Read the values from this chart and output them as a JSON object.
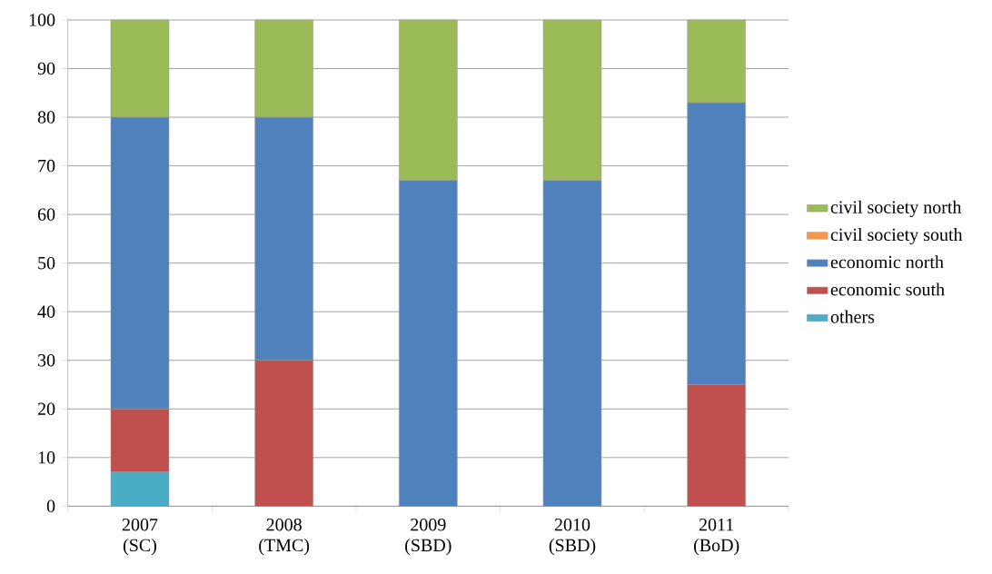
{
  "chart_data": {
    "type": "bar",
    "stacked": true,
    "categories": [
      "2007 (SC)",
      "2008 (TMC)",
      "2009 (SBD)",
      "2010 (SBD)",
      "2011 (BoD)"
    ],
    "series": [
      {
        "name": "others",
        "color": "#4bacc6",
        "values": [
          7,
          0,
          0,
          0,
          0
        ]
      },
      {
        "name": "economic south",
        "color": "#c0504d",
        "values": [
          13,
          30,
          0,
          0,
          25
        ]
      },
      {
        "name": "economic north",
        "color": "#4f81bd",
        "values": [
          60,
          50,
          67,
          67,
          58
        ]
      },
      {
        "name": "civil society south",
        "color": "#f79646",
        "values": [
          0,
          0,
          0,
          0,
          0
        ]
      },
      {
        "name": "civil society north",
        "color": "#9bbb59",
        "values": [
          20,
          20,
          33,
          33,
          17
        ]
      }
    ],
    "ylim": [
      0,
      100
    ],
    "yticks": [
      0,
      10,
      20,
      30,
      40,
      50,
      60,
      70,
      80,
      90,
      100
    ],
    "grid": "y",
    "legend": "right"
  }
}
